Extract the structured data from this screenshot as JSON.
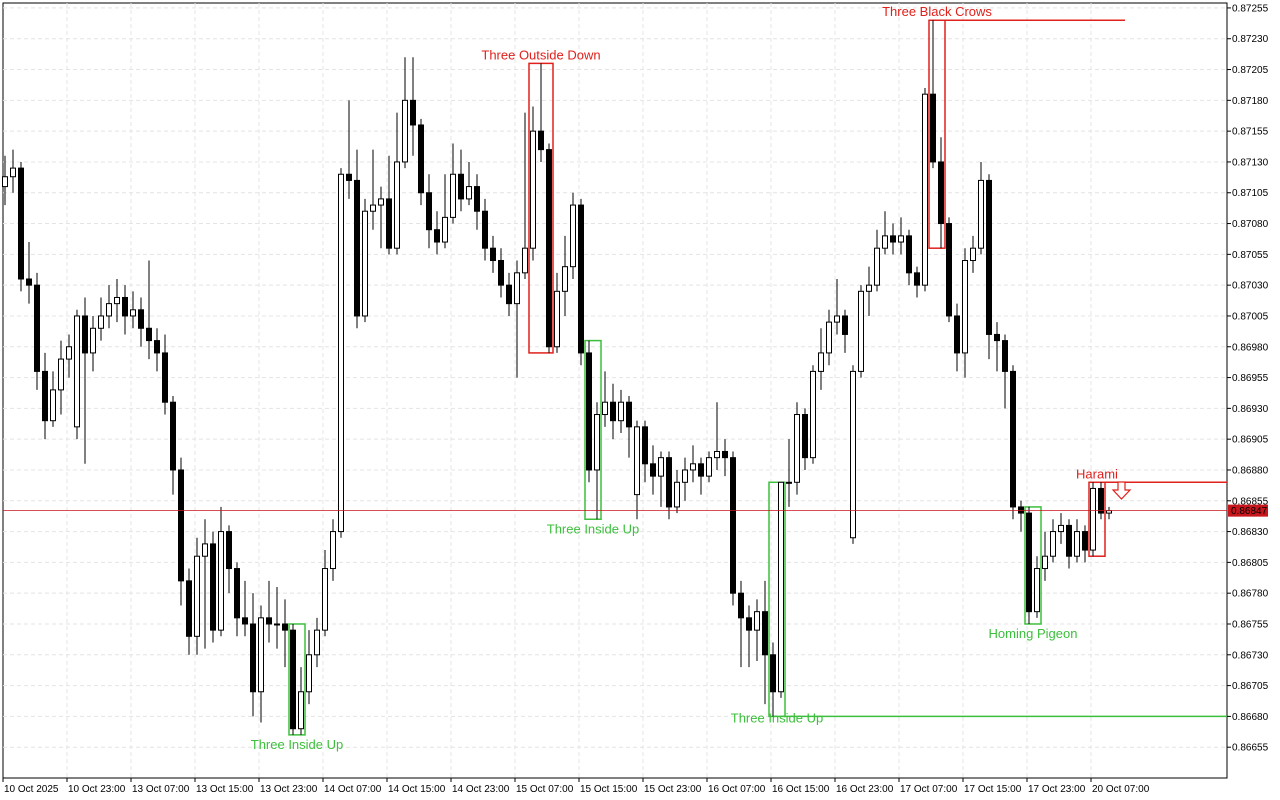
{
  "chart_data": {
    "type": "candlestick",
    "categories": [
      "10 Oct 2025",
      null,
      null,
      null,
      null,
      null,
      null,
      null,
      "10 Oct 23:00",
      null,
      null,
      null,
      null,
      null,
      null,
      null,
      "13 Oct 07:00",
      null,
      null,
      null,
      null,
      null,
      null,
      null,
      "13 Oct 15:00",
      null,
      null,
      null,
      null,
      null,
      null,
      null,
      "13 Oct 23:00",
      null,
      null,
      null,
      null,
      null,
      null,
      null,
      "14 Oct 07:00",
      null,
      null,
      null,
      null,
      null,
      null,
      null,
      "14 Oct 15:00",
      null,
      null,
      null,
      null,
      null,
      null,
      null,
      "14 Oct 23:00",
      null,
      null,
      null,
      null,
      null,
      null,
      null,
      "15 Oct 07:00",
      null,
      null,
      null,
      null,
      null,
      null,
      null,
      "15 Oct 15:00",
      null,
      null,
      null,
      null,
      null,
      null,
      null,
      "15 Oct 23:00",
      null,
      null,
      null,
      null,
      null,
      null,
      null,
      "16 Oct 07:00",
      null,
      null,
      null,
      null,
      null,
      null,
      null,
      "16 Oct 15:00",
      null,
      null,
      null,
      null,
      null,
      null,
      null,
      "16 Oct 23:00",
      null,
      null,
      null,
      null,
      null,
      null,
      null,
      "17 Oct 07:00",
      null,
      null,
      null,
      null,
      null,
      null,
      null,
      "17 Oct 15:00",
      null,
      null,
      null,
      null,
      null,
      null,
      null,
      "17 Oct 23:00",
      null,
      null,
      null,
      null,
      null,
      null,
      null,
      "20 Oct 07:00",
      null,
      null
    ],
    "ohlc": [
      [
        0.8711,
        0.87135,
        0.87095,
        0.87118
      ],
      [
        0.87118,
        0.8714,
        0.87105,
        0.87125
      ],
      [
        0.87125,
        0.8713,
        0.87025,
        0.87035
      ],
      [
        0.87035,
        0.87065,
        0.87015,
        0.8703
      ],
      [
        0.8703,
        0.8704,
        0.86945,
        0.8696
      ],
      [
        0.8696,
        0.86975,
        0.86905,
        0.8692
      ],
      [
        0.8692,
        0.8696,
        0.86915,
        0.86945
      ],
      [
        0.86945,
        0.86985,
        0.86925,
        0.8697
      ],
      [
        0.8697,
        0.8699,
        0.86955,
        0.8698
      ],
      [
        0.86915,
        0.8701,
        0.86905,
        0.87005
      ],
      [
        0.87005,
        0.8702,
        0.86885,
        0.86975
      ],
      [
        0.86975,
        0.87005,
        0.8696,
        0.86995
      ],
      [
        0.86995,
        0.8702,
        0.86985,
        0.87005
      ],
      [
        0.87005,
        0.8703,
        0.86995,
        0.87015
      ],
      [
        0.87015,
        0.87035,
        0.87,
        0.8702
      ],
      [
        0.8702,
        0.8703,
        0.8699,
        0.87005
      ],
      [
        0.87005,
        0.87025,
        0.86995,
        0.8701
      ],
      [
        0.8701,
        0.8702,
        0.8698,
        0.86995
      ],
      [
        0.86995,
        0.8705,
        0.8697,
        0.86985
      ],
      [
        0.86985,
        0.86995,
        0.8696,
        0.86975
      ],
      [
        0.86975,
        0.8699,
        0.86925,
        0.86935
      ],
      [
        0.86935,
        0.8694,
        0.8686,
        0.8688
      ],
      [
        0.8688,
        0.8689,
        0.8677,
        0.8679
      ],
      [
        0.8679,
        0.868,
        0.8673,
        0.86745
      ],
      [
        0.86745,
        0.86825,
        0.8673,
        0.8681
      ],
      [
        0.8681,
        0.8684,
        0.86735,
        0.8682
      ],
      [
        0.8682,
        0.8683,
        0.8674,
        0.8675
      ],
      [
        0.8675,
        0.8685,
        0.86745,
        0.8683
      ],
      [
        0.8683,
        0.86835,
        0.8678,
        0.868
      ],
      [
        0.868,
        0.86805,
        0.86745,
        0.8676
      ],
      [
        0.8676,
        0.8679,
        0.86745,
        0.86755
      ],
      [
        0.86755,
        0.8678,
        0.8668,
        0.867
      ],
      [
        0.867,
        0.8677,
        0.86675,
        0.8676
      ],
      [
        0.8676,
        0.8679,
        0.8674,
        0.86755
      ],
      [
        0.86755,
        0.86785,
        0.86735,
        0.86755
      ],
      [
        0.86755,
        0.86775,
        0.8672,
        0.8675
      ],
      [
        0.8675,
        0.86755,
        0.86665,
        0.8667
      ],
      [
        0.8667,
        0.8672,
        0.86665,
        0.867
      ],
      [
        0.867,
        0.8675,
        0.8669,
        0.8673
      ],
      [
        0.8673,
        0.8676,
        0.8672,
        0.8675
      ],
      [
        0.8675,
        0.86815,
        0.86745,
        0.868
      ],
      [
        0.868,
        0.8684,
        0.8679,
        0.8683
      ],
      [
        0.8683,
        0.87125,
        0.86825,
        0.8712
      ],
      [
        0.8712,
        0.8718,
        0.871,
        0.87115
      ],
      [
        0.87115,
        0.8714,
        0.86995,
        0.87005
      ],
      [
        0.87005,
        0.871,
        0.87,
        0.8709
      ],
      [
        0.8709,
        0.8714,
        0.87075,
        0.87095
      ],
      [
        0.87095,
        0.8711,
        0.8706,
        0.871
      ],
      [
        0.871,
        0.87135,
        0.87055,
        0.8706
      ],
      [
        0.8706,
        0.8717,
        0.87055,
        0.8713
      ],
      [
        0.8713,
        0.87215,
        0.87125,
        0.8718
      ],
      [
        0.8718,
        0.87215,
        0.87135,
        0.8716
      ],
      [
        0.8716,
        0.87165,
        0.87095,
        0.87105
      ],
      [
        0.87105,
        0.8712,
        0.8706,
        0.87075
      ],
      [
        0.87075,
        0.8709,
        0.87055,
        0.87065
      ],
      [
        0.87065,
        0.8712,
        0.8706,
        0.87085
      ],
      [
        0.87085,
        0.87145,
        0.8708,
        0.8712
      ],
      [
        0.8712,
        0.8714,
        0.8709,
        0.871
      ],
      [
        0.871,
        0.8713,
        0.87095,
        0.8711
      ],
      [
        0.8711,
        0.8712,
        0.87075,
        0.8709
      ],
      [
        0.8709,
        0.871,
        0.8705,
        0.8706
      ],
      [
        0.8706,
        0.8707,
        0.8704,
        0.8705
      ],
      [
        0.8705,
        0.8706,
        0.8702,
        0.8703
      ],
      [
        0.8703,
        0.8704,
        0.87005,
        0.87015
      ],
      [
        0.87015,
        0.8705,
        0.86955,
        0.8704
      ],
      [
        0.8704,
        0.8717,
        0.87035,
        0.8706
      ],
      [
        0.8706,
        0.87175,
        0.8705,
        0.87155
      ],
      [
        0.87155,
        0.8721,
        0.8713,
        0.8714
      ],
      [
        0.8714,
        0.87145,
        0.86975,
        0.8698
      ],
      [
        0.8698,
        0.8704,
        0.86975,
        0.87025
      ],
      [
        0.87025,
        0.8707,
        0.87005,
        0.87045
      ],
      [
        0.87045,
        0.87105,
        0.87035,
        0.87095
      ],
      [
        0.87095,
        0.871,
        0.86965,
        0.86975
      ],
      [
        0.86975,
        0.86985,
        0.8687,
        0.8688
      ],
      [
        0.8688,
        0.86935,
        0.8684,
        0.86925
      ],
      [
        0.86925,
        0.8696,
        0.86915,
        0.86935
      ],
      [
        0.86935,
        0.8695,
        0.86905,
        0.8692
      ],
      [
        0.8692,
        0.86945,
        0.8691,
        0.86935
      ],
      [
        0.86935,
        0.8694,
        0.8689,
        0.86915
      ],
      [
        0.8686,
        0.8692,
        0.8684,
        0.86915
      ],
      [
        0.86915,
        0.8692,
        0.8687,
        0.86885
      ],
      [
        0.86885,
        0.869,
        0.8686,
        0.86875
      ],
      [
        0.86875,
        0.86895,
        0.8685,
        0.8689
      ],
      [
        0.8689,
        0.86895,
        0.8684,
        0.8685
      ],
      [
        0.8685,
        0.8688,
        0.86845,
        0.8687
      ],
      [
        0.8687,
        0.8689,
        0.86855,
        0.8688
      ],
      [
        0.8688,
        0.869,
        0.8687,
        0.86885
      ],
      [
        0.86885,
        0.8689,
        0.8686,
        0.86875
      ],
      [
        0.86875,
        0.86895,
        0.8687,
        0.8689
      ],
      [
        0.8689,
        0.86935,
        0.8688,
        0.86895
      ],
      [
        0.86895,
        0.86905,
        0.86875,
        0.8689
      ],
      [
        0.8689,
        0.86895,
        0.8677,
        0.8678
      ],
      [
        0.8678,
        0.8679,
        0.8672,
        0.8676
      ],
      [
        0.8676,
        0.8677,
        0.8672,
        0.8675
      ],
      [
        0.8675,
        0.86775,
        0.86725,
        0.86765
      ],
      [
        0.86765,
        0.8679,
        0.8669,
        0.8673
      ],
      [
        0.8673,
        0.8674,
        0.8668,
        0.867
      ],
      [
        0.867,
        0.8687,
        0.86695,
        0.8687
      ],
      [
        0.8687,
        0.86905,
        0.8685,
        0.8687
      ],
      [
        0.8687,
        0.86935,
        0.8686,
        0.86925
      ],
      [
        0.86925,
        0.8693,
        0.8688,
        0.8689
      ],
      [
        0.8689,
        0.86965,
        0.86885,
        0.8696
      ],
      [
        0.8696,
        0.86995,
        0.86945,
        0.86975
      ],
      [
        0.86975,
        0.8701,
        0.86965,
        0.87
      ],
      [
        0.87,
        0.87035,
        0.8699,
        0.87005
      ],
      [
        0.87005,
        0.8701,
        0.86975,
        0.8699
      ],
      [
        0.86825,
        0.86965,
        0.8682,
        0.8696
      ],
      [
        0.8696,
        0.8703,
        0.86955,
        0.87025
      ],
      [
        0.87025,
        0.87045,
        0.87005,
        0.8703
      ],
      [
        0.8703,
        0.87075,
        0.87025,
        0.8706
      ],
      [
        0.8706,
        0.8709,
        0.87055,
        0.8707
      ],
      [
        0.8707,
        0.8708,
        0.87055,
        0.87065
      ],
      [
        0.87065,
        0.87085,
        0.87055,
        0.8707
      ],
      [
        0.8707,
        0.87075,
        0.8703,
        0.8704
      ],
      [
        0.8704,
        0.87045,
        0.8702,
        0.8703
      ],
      [
        0.8703,
        0.8719,
        0.87025,
        0.87185
      ],
      [
        0.87185,
        0.87245,
        0.87125,
        0.8713
      ],
      [
        0.8713,
        0.8715,
        0.8706,
        0.8708
      ],
      [
        0.8708,
        0.87085,
        0.87,
        0.87005
      ],
      [
        0.87005,
        0.87015,
        0.8696,
        0.86975
      ],
      [
        0.86975,
        0.8706,
        0.86955,
        0.8705
      ],
      [
        0.8705,
        0.8707,
        0.8704,
        0.8706
      ],
      [
        0.8706,
        0.8713,
        0.87055,
        0.87115
      ],
      [
        0.87115,
        0.8712,
        0.8697,
        0.8699
      ],
      [
        0.8699,
        0.87,
        0.8696,
        0.86985
      ],
      [
        0.86985,
        0.8699,
        0.8693,
        0.8696
      ],
      [
        0.8696,
        0.86965,
        0.8684,
        0.8685
      ],
      [
        0.8685,
        0.86855,
        0.8683,
        0.86845
      ],
      [
        0.86845,
        0.8685,
        0.86755,
        0.86765
      ],
      [
        0.86765,
        0.8681,
        0.8676,
        0.868
      ],
      [
        0.868,
        0.8683,
        0.8679,
        0.8681
      ],
      [
        0.8681,
        0.8684,
        0.86805,
        0.8683
      ],
      [
        0.8683,
        0.86845,
        0.8682,
        0.86835
      ],
      [
        0.86835,
        0.8684,
        0.868,
        0.8681
      ],
      [
        0.8681,
        0.8684,
        0.86805,
        0.8683
      ],
      [
        0.8683,
        0.86835,
        0.86805,
        0.86815
      ],
      [
        0.86815,
        0.8687,
        0.8681,
        0.86865
      ],
      [
        0.86865,
        0.8687,
        0.8684,
        0.86845
      ],
      [
        0.86845,
        0.8685,
        0.8684,
        0.86847
      ]
    ],
    "ylim": [
      0.8663,
      0.87259
    ],
    "yticks": [
      {
        "value": 0.87255,
        "label": "0.87255"
      },
      {
        "value": 0.8723,
        "label": "0.87230"
      },
      {
        "value": 0.87205,
        "label": "0.87205"
      },
      {
        "value": 0.8718,
        "label": "0.87180"
      },
      {
        "value": 0.87155,
        "label": "0.87155"
      },
      {
        "value": 0.8713,
        "label": "0.87130"
      },
      {
        "value": 0.87105,
        "label": "0.87105"
      },
      {
        "value": 0.8708,
        "label": "0.87080"
      },
      {
        "value": 0.87055,
        "label": "0.87055"
      },
      {
        "value": 0.8703,
        "label": "0.87030"
      },
      {
        "value": 0.87005,
        "label": "0.87005"
      },
      {
        "value": 0.8698,
        "label": "0.86980"
      },
      {
        "value": 0.86955,
        "label": "0.86955"
      },
      {
        "value": 0.8693,
        "label": "0.86930"
      },
      {
        "value": 0.86905,
        "label": "0.86905"
      },
      {
        "value": 0.8688,
        "label": "0.86880"
      },
      {
        "value": 0.86855,
        "label": "0.86855"
      },
      {
        "value": 0.8683,
        "label": "0.86830"
      },
      {
        "value": 0.86805,
        "label": "0.86805"
      },
      {
        "value": 0.8678,
        "label": "0.86780"
      },
      {
        "value": 0.86755,
        "label": "0.86755"
      },
      {
        "value": 0.8673,
        "label": "0.86730"
      },
      {
        "value": 0.86705,
        "label": "0.86705"
      },
      {
        "value": 0.8668,
        "label": "0.86680"
      },
      {
        "value": 0.86655,
        "label": "0.86655"
      }
    ],
    "last_price": 0.86847,
    "grid": true,
    "bull_color": "#ffffff",
    "bear_color": "#000000",
    "last_price_color": "#c8161d",
    "annotations": [
      {
        "label": "Three Inside Up",
        "color": "#3cbf3c"
      },
      {
        "label": "Three Outside Down",
        "color": "#e0201b"
      },
      {
        "label": "Three Inside Up",
        "color": "#3cbf3c"
      },
      {
        "label": "Three Inside Up",
        "color": "#3cbf3c"
      },
      {
        "label": "Three Black Crows",
        "color": "#e0201b"
      },
      {
        "label": "Homing Pigeon",
        "color": "#3cbf3c"
      },
      {
        "label": "Harami",
        "color": "#e0201b"
      }
    ]
  }
}
